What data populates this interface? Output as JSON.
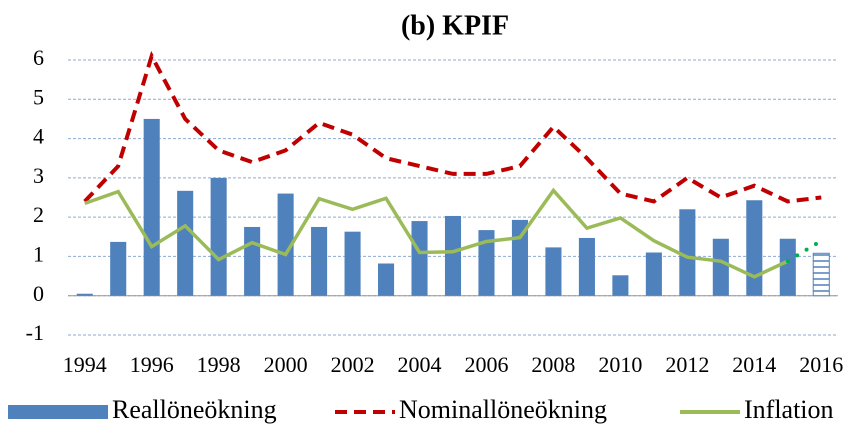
{
  "chart_data": {
    "type": "bar_line",
    "title": "(b) KPIF",
    "categories": [
      "1994",
      null,
      "1996",
      null,
      "1998",
      null,
      "2000",
      null,
      "2002",
      null,
      "2004",
      null,
      "2006",
      null,
      "2008",
      null,
      "2010",
      null,
      "2012",
      null,
      "2014",
      null,
      "2016"
    ],
    "series": [
      {
        "name": "Reallöneökning",
        "kind": "bar",
        "color": "#4f81bd",
        "values": [
          0.05,
          1.37,
          4.5,
          2.67,
          3.0,
          1.75,
          2.6,
          1.75,
          1.63,
          0.82,
          1.9,
          2.03,
          1.67,
          1.93,
          1.23,
          1.47,
          0.52,
          1.1,
          2.2,
          1.45,
          2.43,
          1.45,
          1.08
        ]
      },
      {
        "name": "Nominallöneökning",
        "kind": "dashed-line",
        "color": "#c00000",
        "values": [
          2.4,
          3.3,
          6.1,
          4.5,
          3.7,
          3.4,
          3.7,
          4.4,
          4.1,
          3.5,
          3.3,
          3.1,
          3.1,
          3.3,
          4.3,
          3.5,
          2.6,
          2.4,
          3.0,
          2.5,
          2.8,
          2.4,
          2.5
        ]
      },
      {
        "name": "Inflation",
        "kind": "line",
        "color": "#9bbb59",
        "forecast_color": "#00b050",
        "values": [
          2.35,
          2.65,
          1.25,
          1.78,
          0.92,
          1.35,
          1.05,
          2.47,
          2.2,
          2.48,
          1.1,
          1.12,
          1.38,
          1.48,
          2.68,
          1.72,
          1.98,
          1.4,
          0.98,
          0.88,
          0.48,
          0.88,
          1.4
        ]
      }
    ],
    "forecast_last_point": true,
    "ylim": [
      -1,
      6
    ],
    "yticks": [
      -1,
      0,
      1,
      2,
      3,
      4,
      5,
      6
    ],
    "grid": true,
    "legend": "bottom"
  }
}
